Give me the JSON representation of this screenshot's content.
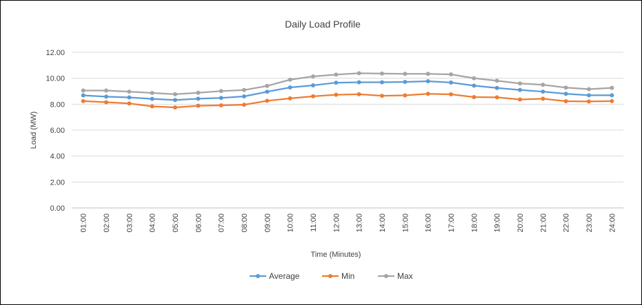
{
  "chart_data": {
    "type": "line",
    "title": "Daily Load Profile",
    "xlabel": "Time (Minutes)",
    "ylabel": "Load (MW)",
    "ylim": [
      0,
      12
    ],
    "yticks": [
      "0.00",
      "2.00",
      "4.00",
      "6.00",
      "8.00",
      "10.00",
      "12.00"
    ],
    "grid": true,
    "legend": "bottom",
    "categories": [
      "01:00",
      "02:00",
      "03:00",
      "04:00",
      "05:00",
      "06:00",
      "07:00",
      "08:00",
      "09:00",
      "10:00",
      "11:00",
      "12:00",
      "13:00",
      "14:00",
      "15:00",
      "16:00",
      "17:00",
      "18:00",
      "19:00",
      "20:00",
      "21:00",
      "22:00",
      "23:00",
      "24:00"
    ],
    "series": [
      {
        "name": "Average",
        "color": "#5B9BD5",
        "values": [
          8.68,
          8.58,
          8.52,
          8.41,
          8.32,
          8.42,
          8.48,
          8.6,
          8.96,
          9.29,
          9.45,
          9.66,
          9.69,
          9.69,
          9.72,
          9.77,
          9.67,
          9.43,
          9.25,
          9.1,
          8.97,
          8.8,
          8.69,
          8.69
        ]
      },
      {
        "name": "Min",
        "color": "#ED7D31",
        "values": [
          8.24,
          8.15,
          8.06,
          7.83,
          7.75,
          7.88,
          7.91,
          7.96,
          8.26,
          8.45,
          8.61,
          8.73,
          8.77,
          8.65,
          8.68,
          8.8,
          8.76,
          8.55,
          8.53,
          8.36,
          8.42,
          8.23,
          8.21,
          8.24
        ]
      },
      {
        "name": "Max",
        "color": "#A5A5A5",
        "values": [
          9.05,
          9.05,
          8.97,
          8.87,
          8.77,
          8.88,
          9.01,
          9.09,
          9.41,
          9.89,
          10.14,
          10.28,
          10.39,
          10.36,
          10.34,
          10.34,
          10.3,
          10.0,
          9.81,
          9.6,
          9.5,
          9.28,
          9.16,
          9.26
        ]
      }
    ]
  }
}
